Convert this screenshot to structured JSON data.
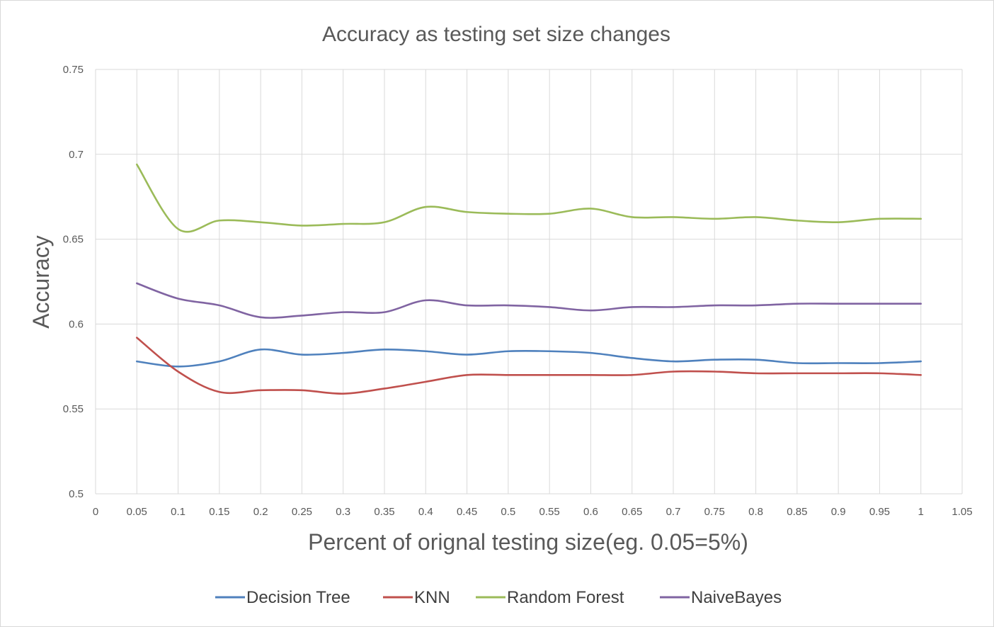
{
  "chart_data": {
    "type": "line",
    "title": "Accuracy as testing set size changes",
    "xlabel": "Percent  of orignal testing size(eg. 0.05=5%)",
    "ylabel": "Accuracy",
    "xlim": [
      0,
      1.05
    ],
    "ylim": [
      0.5,
      0.75
    ],
    "x_ticks": [
      "0",
      "0.05",
      "0.1",
      "0.15",
      "0.2",
      "0.25",
      "0.3",
      "0.35",
      "0.4",
      "0.45",
      "0.5",
      "0.55",
      "0.6",
      "0.65",
      "0.7",
      "0.75",
      "0.8",
      "0.85",
      "0.9",
      "0.95",
      "1",
      "1.05"
    ],
    "y_ticks": [
      "0.5",
      "0.55",
      "0.6",
      "0.65",
      "0.7",
      "0.75"
    ],
    "grid": "on",
    "legend_position": "bottom",
    "x": [
      0.05,
      0.1,
      0.15,
      0.2,
      0.25,
      0.3,
      0.35,
      0.4,
      0.45,
      0.5,
      0.55,
      0.6,
      0.65,
      0.7,
      0.75,
      0.8,
      0.85,
      0.9,
      0.95,
      1.0
    ],
    "series": [
      {
        "name": "Decision Tree",
        "color": "#4f81bd",
        "values": [
          0.578,
          0.575,
          0.578,
          0.585,
          0.582,
          0.583,
          0.585,
          0.584,
          0.582,
          0.584,
          0.584,
          0.583,
          0.58,
          0.578,
          0.579,
          0.579,
          0.577,
          0.577,
          0.577,
          0.578
        ]
      },
      {
        "name": "KNN",
        "color": "#c0504d",
        "values": [
          0.592,
          0.572,
          0.56,
          0.561,
          0.561,
          0.559,
          0.562,
          0.566,
          0.57,
          0.57,
          0.57,
          0.57,
          0.57,
          0.572,
          0.572,
          0.571,
          0.571,
          0.571,
          0.571,
          0.57
        ]
      },
      {
        "name": "Random Forest",
        "color": "#9bbb59",
        "values": [
          0.694,
          0.656,
          0.661,
          0.66,
          0.658,
          0.659,
          0.66,
          0.669,
          0.666,
          0.665,
          0.665,
          0.668,
          0.663,
          0.663,
          0.662,
          0.663,
          0.661,
          0.66,
          0.662,
          0.662
        ]
      },
      {
        "name": "NaiveBayes",
        "color": "#8064a2",
        "values": [
          0.624,
          0.615,
          0.611,
          0.604,
          0.605,
          0.607,
          0.607,
          0.614,
          0.611,
          0.611,
          0.61,
          0.608,
          0.61,
          0.61,
          0.611,
          0.611,
          0.612,
          0.612,
          0.612,
          0.612
        ]
      }
    ]
  }
}
